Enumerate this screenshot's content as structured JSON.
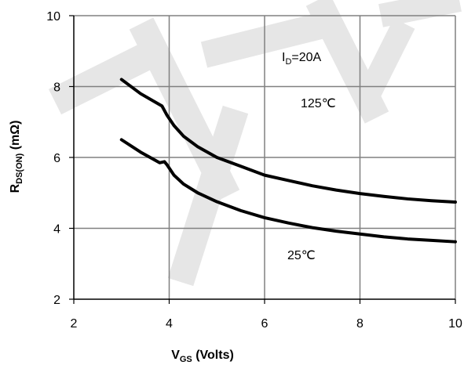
{
  "chart_data": {
    "type": "line",
    "title": "",
    "xlabel_main": "V",
    "xlabel_sub": "GS",
    "xlabel_tail": " (Volts)",
    "ylabel_main": "R",
    "ylabel_sub": "DS(ON)",
    "ylabel_tail": " (mΩ)",
    "xlim": [
      2,
      10
    ],
    "ylim": [
      2,
      10
    ],
    "xticks": [
      2,
      4,
      6,
      8,
      10
    ],
    "yticks": [
      2,
      4,
      6,
      8,
      10
    ],
    "xtick_labels": [
      "2",
      "4",
      "6",
      "8",
      "10"
    ],
    "ytick_labels": [
      "2",
      "4",
      "6",
      "8",
      "10"
    ],
    "grid": true,
    "legend": "none",
    "annotations": {
      "id_main": "I",
      "id_sub": "D",
      "id_tail": "=20A",
      "hot_label": "125℃",
      "cold_label": "25℃"
    },
    "series": [
      {
        "name": "125℃",
        "x": [
          3.0,
          3.4,
          3.85,
          3.95,
          4.1,
          4.3,
          4.6,
          5.0,
          5.5,
          6.0,
          6.5,
          7.0,
          7.5,
          8.0,
          8.5,
          9.0,
          9.5,
          10.0
        ],
        "y": [
          8.2,
          7.8,
          7.45,
          7.2,
          6.9,
          6.6,
          6.3,
          6.0,
          5.75,
          5.5,
          5.35,
          5.2,
          5.08,
          4.98,
          4.9,
          4.83,
          4.78,
          4.74
        ]
      },
      {
        "name": "25℃",
        "x": [
          3.0,
          3.4,
          3.8,
          3.9,
          3.95,
          4.1,
          4.3,
          4.6,
          5.0,
          5.5,
          6.0,
          6.5,
          7.0,
          7.5,
          8.0,
          8.5,
          9.0,
          9.5,
          10.0
        ],
        "y": [
          6.5,
          6.15,
          5.85,
          5.88,
          5.8,
          5.5,
          5.25,
          5.0,
          4.75,
          4.5,
          4.3,
          4.15,
          4.02,
          3.92,
          3.84,
          3.76,
          3.7,
          3.66,
          3.62
        ]
      }
    ],
    "colors": {
      "line": "#000000",
      "grid": "#808080",
      "axis": "#000000",
      "watermark": "#e6e6e6"
    }
  }
}
